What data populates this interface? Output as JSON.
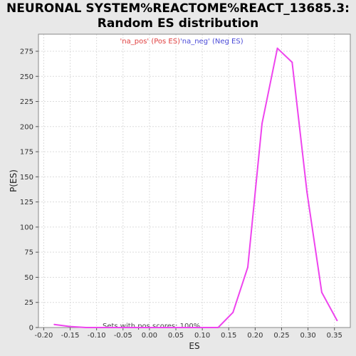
{
  "chart_data": {
    "type": "line",
    "title_line1": "NEURONAL SYSTEM%REACTOME%REACT_13685.3:",
    "title_line2": "Random ES distribution",
    "xlabel": "ES",
    "ylabel": "P(ES)",
    "xlim": [
      -0.21,
      0.38
    ],
    "ylim": [
      0,
      292
    ],
    "xticks": [
      "-0.20",
      "-0.15",
      "-0.10",
      "-0.05",
      "0.00",
      "0.05",
      "0.10",
      "0.15",
      "0.20",
      "0.25",
      "0.30",
      "0.35"
    ],
    "yticks": [
      "0",
      "25",
      "50",
      "75",
      "100",
      "125",
      "150",
      "175",
      "200",
      "225",
      "250",
      "275"
    ],
    "grid": true,
    "legend": {
      "placement": "top-center",
      "items": [
        {
          "label": "'na_pos' (Pos ES)",
          "color": "#e04040"
        },
        {
          "label": "'na_neg' (Neg ES)",
          "color": "#4a4ad8"
        }
      ]
    },
    "annotation": "Sets with pos scores: 100%",
    "series": [
      {
        "color": "#ee44ee",
        "x": [
          -0.18,
          -0.15,
          -0.12,
          -0.09,
          -0.06,
          -0.03,
          0.0,
          0.03,
          0.06,
          0.09,
          0.12,
          0.13,
          0.158,
          0.186,
          0.213,
          0.242,
          0.27,
          0.298,
          0.326,
          0.355
        ],
        "y": [
          3,
          1,
          0,
          0,
          0,
          0,
          0,
          0,
          0,
          0,
          0,
          0,
          15,
          60,
          203,
          278,
          264,
          135,
          35,
          7
        ]
      }
    ]
  }
}
